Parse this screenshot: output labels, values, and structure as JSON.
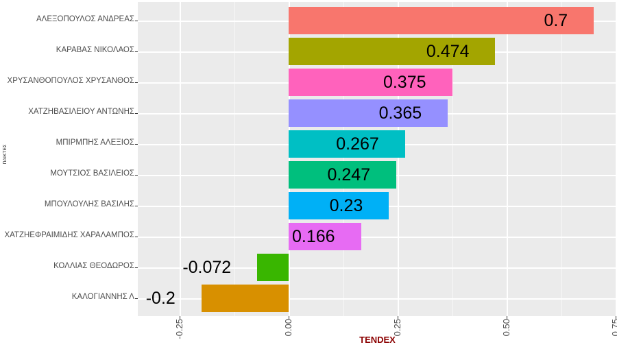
{
  "chart_data": {
    "type": "bar",
    "orientation": "horizontal",
    "title": "",
    "xlabel": "TENDEX",
    "ylabel": "ΠΑΙΚΤΕΣ",
    "categories": [
      "ΑΛΕΞΟΠΟΥΛΟΣ ΑΝΔΡΕΑΣ",
      "ΚΑΡΑΒΑΣ ΝΙΚΟΛΑΟΣ",
      "ΧΡΥΣΑΝΘΟΠΟΥΛΟΣ ΧΡΥΣΑΝΘΟΣ",
      "ΧΑΤΖΗΒΑΣΙΛΕΙΟΥ ΑΝΤΩΝΗΣ",
      "ΜΠΙΡΜΠΗΣ ΑΛΕΞΙΟΣ",
      "ΜΟΥΤΣΙΟΣ ΒΑΣΙΛΕΙΟΣ",
      "ΜΠΟΥΛΟΥΛΗΣ ΒΑΣΙΛΗΣ",
      "ΧΑΤΖΗΕΦΡΑΙΜΙΔΗΣ ΧΑΡΑΛΑΜΠΟΣ",
      "ΚΟΛΛΙΑΣ ΘΕΟΔΩΡΟΣ",
      "ΚΑΛΟΓΙΑΝΝΗΣ Λ"
    ],
    "values": [
      0.7,
      0.474,
      0.375,
      0.365,
      0.267,
      0.247,
      0.23,
      0.166,
      -0.072,
      -0.2
    ],
    "value_labels": [
      "0.7",
      "0.474",
      "0.375",
      "0.365",
      "0.267",
      "0.247",
      "0.23",
      "0.166",
      "-0.072",
      "-0.2"
    ],
    "bar_colors": [
      "#F8766D",
      "#A3A500",
      "#FF62BC",
      "#9590FF",
      "#00BFC4",
      "#00BF7D",
      "#00B0F6",
      "#E76BF3",
      "#39B600",
      "#D89000"
    ],
    "x_ticks": [
      -0.25,
      0.0,
      0.25,
      0.5,
      0.75
    ],
    "x_tick_labels": [
      "-0.25",
      "0.00",
      "0.25",
      "0.50",
      "0.75"
    ],
    "x_minor_ticks": [
      -0.125,
      0.125,
      0.375,
      0.625
    ],
    "xlim": [
      -0.346,
      0.753
    ],
    "grid": true,
    "legend": false,
    "panel_bg": "#EBEBEB",
    "grid_major_color": "#FFFFFF",
    "grid_minor_color": "rgba(255,255,255,0.6)",
    "axis_text_color": "#4D4D4D",
    "xlabel_color": "#8B0000",
    "bar_label_color": "#000000"
  }
}
